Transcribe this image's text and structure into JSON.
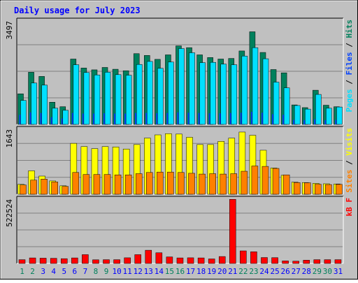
{
  "colors": {
    "hits": "#00805c",
    "files": "#0040ff",
    "pages": "#00e0ff",
    "visits": "#ffff00",
    "sites": "#ff8000",
    "kbytes": "#ff0000",
    "weekend_label": "#00805c",
    "weekday_label": "#0000ff",
    "title": "#0000ff",
    "panel_bg": "#c0c0c0",
    "grid": "#808080"
  },
  "chart_data": {
    "type": "bar",
    "title": "Daily usage for July 2023",
    "categories": [
      "1",
      "2",
      "3",
      "4",
      "5",
      "6",
      "7",
      "8",
      "9",
      "10",
      "11",
      "12",
      "13",
      "14",
      "15",
      "16",
      "17",
      "18",
      "19",
      "20",
      "21",
      "22",
      "23",
      "24",
      "25",
      "26",
      "27",
      "28",
      "29",
      "30",
      "31"
    ],
    "weekend_days": [
      "1",
      "2",
      "8",
      "9",
      "15",
      "16",
      "22",
      "23",
      "29",
      "30"
    ],
    "panels": [
      {
        "id": "hits-files-pages",
        "ylim": [
          0,
          3497
        ],
        "ymax_label": "3497",
        "legend": [
          "Pages",
          "Files",
          "Hits"
        ],
        "series": [
          {
            "name": "Hits",
            "values": [
              1020,
              1740,
              1600,
              740,
              590,
              2180,
              1880,
              1820,
              1900,
              1840,
              1790,
              2360,
              2300,
              2170,
              2320,
              2620,
              2560,
              2320,
              2230,
              2180,
              2200,
              2450,
              3090,
              2400,
              1830,
              1720,
              650,
              560,
              1140,
              640,
              590
            ]
          },
          {
            "name": "Files",
            "values": [
              320,
              400,
              380,
              240,
              200,
              380,
              360,
              360,
              370,
              360,
              360,
              380,
              380,
              370,
              380,
              400,
              390,
              380,
              370,
              370,
              380,
              390,
              420,
              390,
              340,
              320,
              150,
              140,
              170,
              140,
              150
            ]
          },
          {
            "name": "Pages",
            "values": [
              800,
              1380,
              1310,
              540,
              470,
              1990,
              1730,
              1650,
              1740,
              1660,
              1640,
              2000,
              2100,
              1870,
              2080,
              2530,
              2390,
              2060,
              2070,
              2010,
              1990,
              2280,
              2560,
              2190,
              1410,
              1220,
              630,
              510,
              1000,
              540,
              580
            ]
          }
        ]
      },
      {
        "id": "visits-sites",
        "ylim": [
          0,
          1643
        ],
        "ymax_label": "1643",
        "legend": [
          "Sites",
          "Visits"
        ],
        "series": [
          {
            "name": "Visits",
            "values": [
              245,
              580,
              450,
              330,
              210,
              1260,
              1180,
              1130,
              1180,
              1170,
              1120,
              1230,
              1390,
              1470,
              1500,
              1490,
              1410,
              1230,
              1230,
              1310,
              1390,
              1540,
              1460,
              1090,
              650,
              470,
              300,
              290,
              270,
              260,
              255
            ]
          },
          {
            "name": "Sites",
            "values": [
              230,
              350,
              375,
              305,
              195,
              540,
              490,
              490,
              490,
              480,
              480,
              510,
              540,
              550,
              550,
              540,
              520,
              500,
              510,
              500,
              510,
              570,
              700,
              690,
              640,
              480,
              290,
              285,
              250,
              240,
              245
            ]
          }
        ]
      },
      {
        "id": "kbytes",
        "ylim": [
          0,
          522524
        ],
        "ymax_label": "522524",
        "legend": [
          "kB F"
        ],
        "series": [
          {
            "name": "kB F",
            "values": [
              30000,
              44000,
              42000,
              41000,
              38000,
              44000,
              70000,
              29000,
              30000,
              30000,
              45000,
              70000,
              105000,
              85000,
              52000,
              44000,
              45000,
              44000,
              36000,
              55000,
              510000,
              100000,
              93000,
              47000,
              46000,
              20000,
              18000,
              26000,
              30000,
              30000,
              30000
            ]
          }
        ]
      }
    ]
  }
}
